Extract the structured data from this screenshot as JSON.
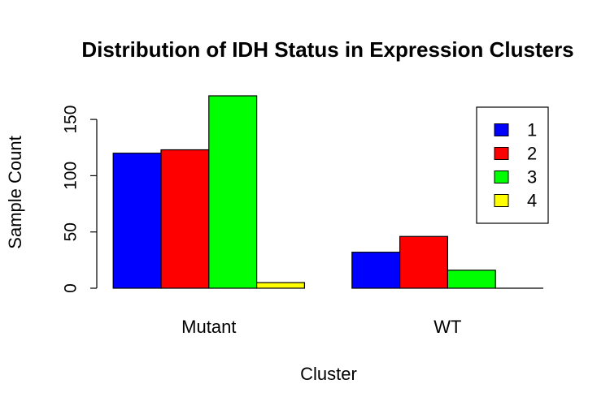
{
  "chart_data": {
    "type": "bar",
    "title": "Distribution of IDH Status in Expression Clusters",
    "xlabel": "Cluster",
    "ylabel": "Sample Count",
    "categories": [
      "Mutant",
      "WT"
    ],
    "series": [
      {
        "name": "1",
        "color": "#0000ff",
        "values": [
          120,
          32
        ]
      },
      {
        "name": "2",
        "color": "#ff0000",
        "values": [
          123,
          46
        ]
      },
      {
        "name": "3",
        "color": "#00ff00",
        "values": [
          171,
          16
        ]
      },
      {
        "name": "4",
        "color": "#ffff00",
        "values": [
          5,
          0
        ]
      }
    ],
    "yticks": [
      0,
      50,
      100,
      150
    ],
    "ytick_labels": [
      "0",
      "50",
      "100",
      "150"
    ],
    "ylim": [
      0,
      171
    ],
    "grid": false,
    "legend_position": "top-right"
  }
}
